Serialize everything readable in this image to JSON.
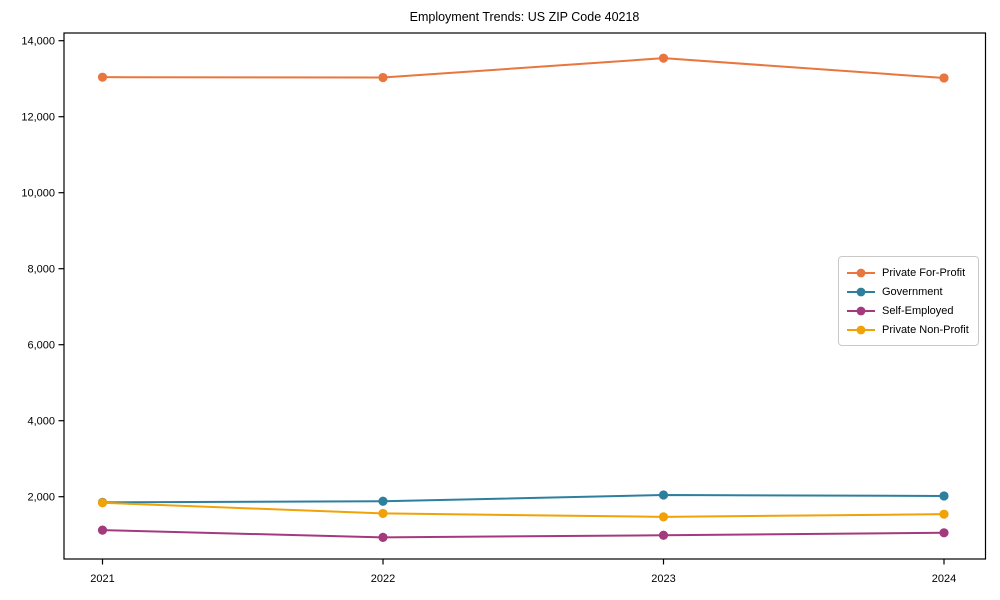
{
  "title": "Employment Trends: US ZIP Code 40218",
  "chart_data": {
    "type": "line",
    "title": "Employment Trends: US ZIP Code 40218",
    "xlabel": "",
    "ylabel": "",
    "categories": [
      "2021",
      "2022",
      "2023",
      "2024"
    ],
    "series": [
      {
        "name": "Private For-Profit",
        "color": "#e8763e",
        "values": [
          13040,
          13030,
          13540,
          13020
        ]
      },
      {
        "name": "Government",
        "color": "#2e7f9e",
        "values": [
          1850,
          1880,
          2045,
          2020
        ]
      },
      {
        "name": "Self-Employed",
        "color": "#a33a7d",
        "values": [
          1120,
          930,
          985,
          1050
        ]
      },
      {
        "name": "Private Non-Profit",
        "color": "#f0a206",
        "values": [
          1840,
          1560,
          1470,
          1540
        ]
      }
    ],
    "y_ticks": {
      "values": [
        2000,
        4000,
        6000,
        8000,
        10000,
        12000,
        14000
      ],
      "labels": [
        "2,000",
        "4,000",
        "6,000",
        "8,000",
        "10,000",
        "12,000",
        "14,000"
      ]
    },
    "ylim": [
      360,
      14200
    ],
    "grid": false,
    "legend_position": "center-right",
    "axis_color": "#000000",
    "background": "#ffffff"
  }
}
